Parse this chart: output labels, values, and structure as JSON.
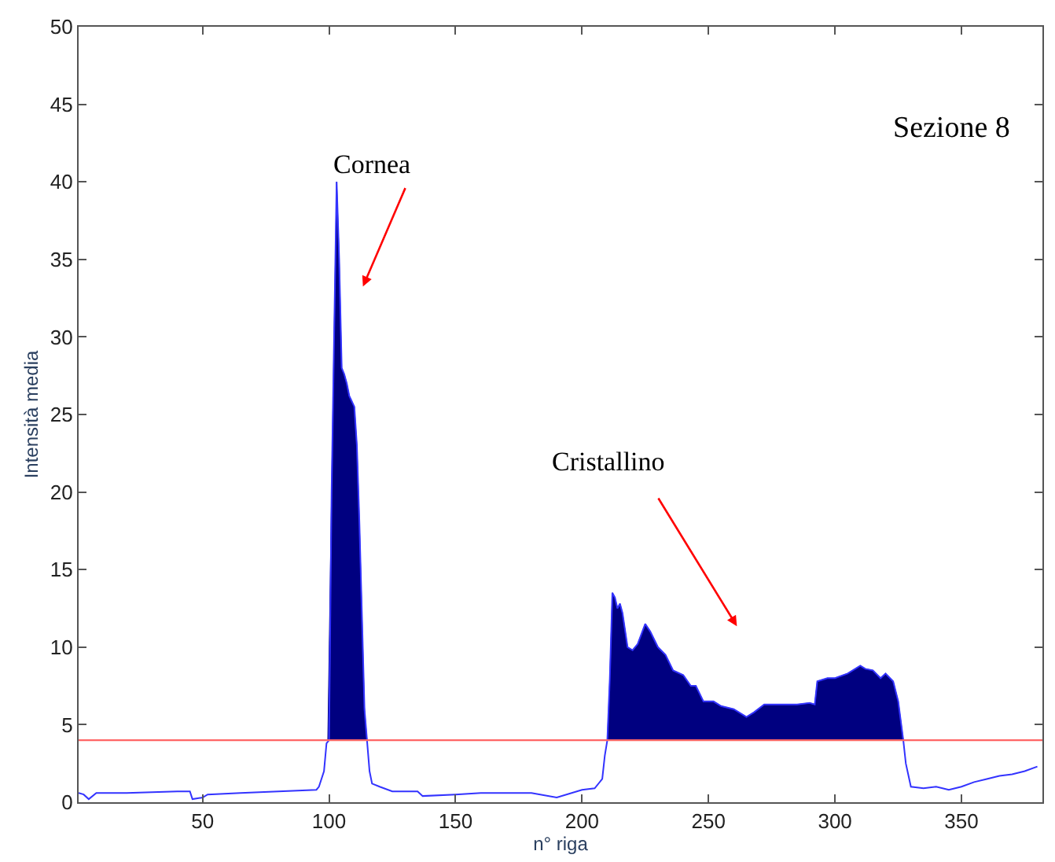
{
  "chart_data": {
    "type": "line",
    "xlabel": "n° riga",
    "ylabel": "Intensità media",
    "xlim": [
      1,
      382
    ],
    "xticks": [
      50,
      100,
      150,
      200,
      250,
      300,
      350
    ],
    "ylim": [
      0,
      50
    ],
    "yticks": [
      0,
      5,
      10,
      15,
      20,
      25,
      30,
      35,
      40,
      45,
      50
    ],
    "series": [
      {
        "type": "area",
        "color": "#000080",
        "x": [
          99.5,
          101,
          103,
          104,
          105,
          106,
          107,
          108,
          110,
          111,
          112,
          113,
          114,
          115
        ],
        "values": [
          4,
          20,
          40,
          35,
          28,
          27.6,
          27,
          26.2,
          25.5,
          23,
          18,
          12,
          6,
          4
        ]
      },
      {
        "type": "area",
        "color": "#000080",
        "x": [
          210,
          211,
          212,
          213,
          214,
          215,
          216,
          218,
          220,
          222,
          225,
          227,
          230,
          233,
          236,
          240,
          243,
          245,
          248,
          252,
          255,
          260,
          265,
          268,
          272,
          278,
          285,
          290,
          292,
          293,
          297,
          300,
          305,
          310,
          312,
          315,
          318,
          320,
          323,
          325,
          327
        ],
        "values": [
          4,
          8,
          13.5,
          13.2,
          12.5,
          12.8,
          12.2,
          10,
          9.8,
          10.2,
          11.5,
          11,
          10,
          9.5,
          8.5,
          8.2,
          7.5,
          7.5,
          6.5,
          6.5,
          6.2,
          6,
          5.5,
          5.8,
          6.3,
          6.3,
          6.3,
          6.4,
          6.3,
          7.8,
          8,
          8,
          8.3,
          8.8,
          8.6,
          8.5,
          8,
          8.3,
          7.8,
          6.5,
          4
        ]
      },
      {
        "color": "#3333ff",
        "x": [
          1,
          3,
          5,
          8,
          20,
          40,
          45,
          46,
          50,
          52,
          65,
          80,
          95,
          96,
          98,
          99,
          100,
          101,
          103,
          104,
          105,
          106,
          107,
          108,
          110,
          111,
          112,
          113,
          114,
          115,
          116,
          117,
          120,
          125,
          135,
          137,
          150,
          160,
          180,
          190,
          200,
          205,
          208,
          209,
          210,
          211,
          212,
          213,
          214,
          215,
          216,
          218,
          220,
          222,
          225,
          227,
          230,
          233,
          236,
          240,
          243,
          245,
          248,
          252,
          255,
          260,
          265,
          268,
          272,
          278,
          285,
          290,
          292,
          293,
          297,
          300,
          305,
          310,
          312,
          315,
          318,
          320,
          323,
          325,
          327,
          328,
          330,
          335,
          340,
          345,
          350,
          355,
          360,
          365,
          370,
          375,
          380
        ],
        "values": [
          0.6,
          0.5,
          0.2,
          0.6,
          0.6,
          0.7,
          0.7,
          0.2,
          0.3,
          0.5,
          0.6,
          0.7,
          0.8,
          1,
          2,
          3.8,
          4,
          20,
          40,
          35,
          28,
          27.6,
          27,
          26.2,
          25.5,
          23,
          18,
          12,
          6,
          4,
          2,
          1.2,
          1,
          0.7,
          0.7,
          0.4,
          0.5,
          0.6,
          0.6,
          0.3,
          0.8,
          0.9,
          1.5,
          3,
          4,
          8,
          13.5,
          13.2,
          12.5,
          12.8,
          12.2,
          10,
          9.8,
          10.2,
          11.5,
          11,
          10,
          9.5,
          8.5,
          8.2,
          7.5,
          7.5,
          6.5,
          6.5,
          6.2,
          6,
          5.5,
          5.8,
          6.3,
          6.3,
          6.3,
          6.4,
          6.3,
          7.8,
          8,
          8,
          8.3,
          8.8,
          8.6,
          8.5,
          8,
          8.3,
          7.8,
          6.5,
          4,
          2.5,
          1,
          0.9,
          1,
          0.8,
          1,
          1.3,
          1.5,
          1.7,
          1.8,
          2,
          2.3
        ]
      }
    ],
    "ref_lines": [
      {
        "axis": "y",
        "value": 4,
        "color": "#ff6666"
      }
    ],
    "annotations": [
      "Cornea",
      "Cristallino",
      "Sezione 8"
    ]
  }
}
